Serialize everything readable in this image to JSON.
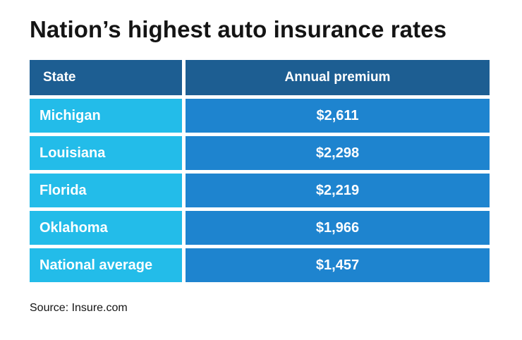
{
  "title": "Nation’s highest auto insurance rates",
  "table": {
    "headers": [
      "State",
      "Annual premium"
    ],
    "rows": [
      {
        "state": "Michigan",
        "premium": "$2,611"
      },
      {
        "state": "Louisiana",
        "premium": "$2,298"
      },
      {
        "state": "Florida",
        "premium": "$2,219"
      },
      {
        "state": "Oklahoma",
        "premium": "$1,966"
      },
      {
        "state": "National average",
        "premium": "$1,457"
      }
    ]
  },
  "source": "Source: Insure.com",
  "colors": {
    "page_bg": "#ffffff",
    "header_bg": "#1d5e92",
    "state_bg": "#23bce9",
    "value_bg": "#1e84cf",
    "cell_text": "#ffffff",
    "title_text": "#141414"
  },
  "chart_data": {
    "type": "table",
    "title": "Nation’s highest auto insurance rates",
    "columns": [
      "State",
      "Annual premium"
    ],
    "categories": [
      "Michigan",
      "Louisiana",
      "Florida",
      "Oklahoma",
      "National average"
    ],
    "values": [
      2611,
      2298,
      2219,
      1966,
      1457
    ],
    "value_labels": [
      "$2,611",
      "$2,298",
      "$2,219",
      "$1,966",
      "$1,457"
    ],
    "source": "Source: Insure.com"
  }
}
